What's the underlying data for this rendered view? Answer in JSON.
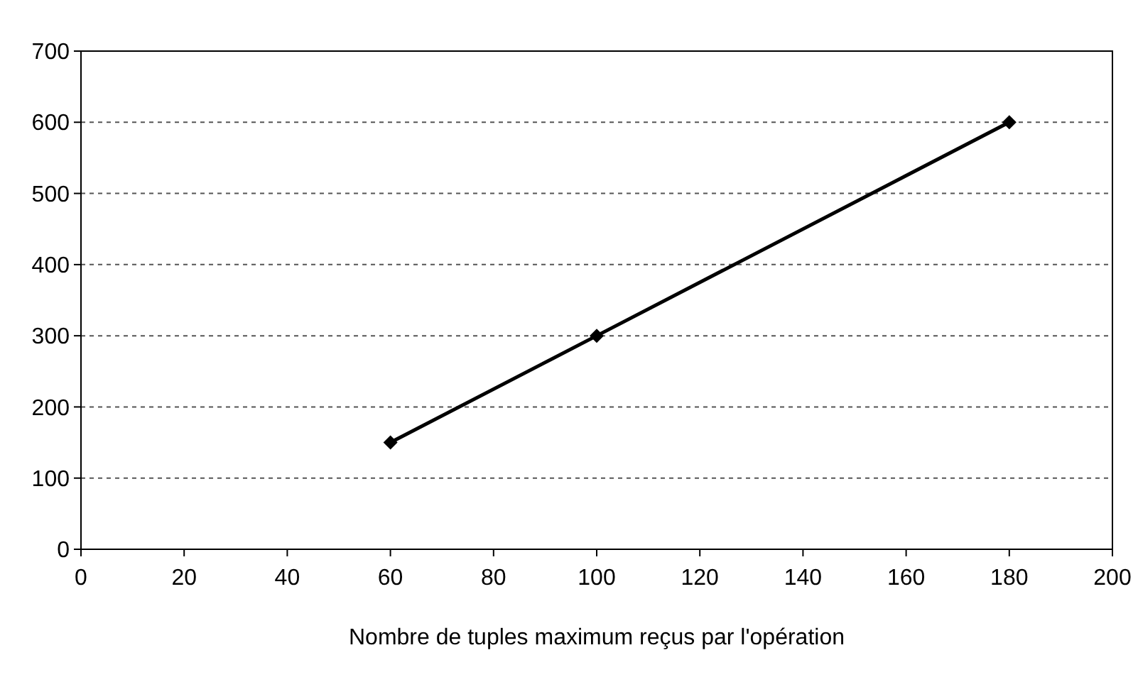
{
  "chart_data": {
    "type": "line",
    "xlabel": "Nombre de tuples maximum reçus par l'opération",
    "x": [
      60,
      100,
      180
    ],
    "series": [
      {
        "color": "#000000",
        "values": [
          150,
          300,
          600
        ]
      }
    ],
    "xlim": [
      0,
      200
    ],
    "xticks": [
      0,
      20,
      40,
      60,
      80,
      100,
      120,
      140,
      160,
      180,
      200
    ],
    "ylim": [
      0,
      700
    ],
    "yticks": [
      0,
      100,
      200,
      300,
      400,
      500,
      600,
      700
    ],
    "grid": "y",
    "marker": "diamond",
    "line_style": "solid"
  }
}
